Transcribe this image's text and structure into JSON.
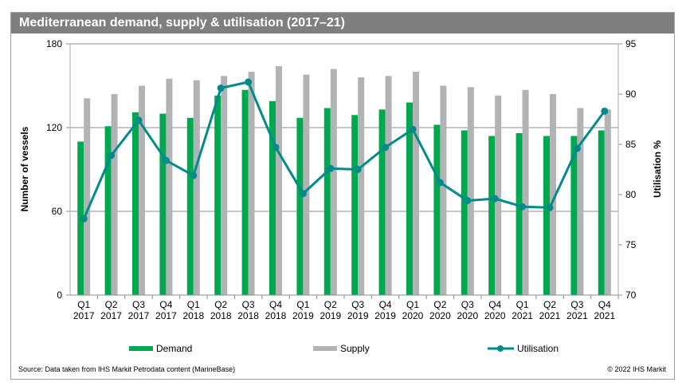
{
  "chart_data": {
    "type": "bar+line",
    "title": "Mediterranean demand, supply & utilisation (2017–21)",
    "ylabel": "Number of vessels",
    "y2label": "Utilisation %",
    "ylim": [
      0,
      180
    ],
    "yticks": [
      0,
      60,
      120,
      180
    ],
    "y2lim": [
      70,
      95
    ],
    "y2ticks": [
      70,
      75,
      80,
      85,
      90,
      95
    ],
    "grid": "horizontal",
    "legend": "bottom",
    "categories": [
      [
        "Q1",
        "2017"
      ],
      [
        "Q2",
        "2017"
      ],
      [
        "Q3",
        "2017"
      ],
      [
        "Q4",
        "2017"
      ],
      [
        "Q1",
        "2018"
      ],
      [
        "Q2",
        "2018"
      ],
      [
        "Q3",
        "2018"
      ],
      [
        "Q4",
        "2018"
      ],
      [
        "Q1",
        "2019"
      ],
      [
        "Q2",
        "2019"
      ],
      [
        "Q3",
        "2019"
      ],
      [
        "Q4",
        "2019"
      ],
      [
        "Q1",
        "2020"
      ],
      [
        "Q2",
        "2020"
      ],
      [
        "Q3",
        "2020"
      ],
      [
        "Q4",
        "2020"
      ],
      [
        "Q1",
        "2021"
      ],
      [
        "Q2",
        "2021"
      ],
      [
        "Q3",
        "2021"
      ],
      [
        "Q4",
        "2021"
      ]
    ],
    "series": [
      {
        "name": "Demand",
        "type": "bar",
        "axis": "left",
        "color": "#00a84f",
        "values": [
          110,
          121,
          131,
          130,
          127,
          143,
          147,
          139,
          127,
          134,
          129,
          133,
          138,
          122,
          118,
          114,
          116,
          114,
          114,
          118
        ]
      },
      {
        "name": "Supply",
        "type": "bar",
        "axis": "left",
        "color": "#b2b3b6",
        "values": [
          141,
          144,
          150,
          155,
          154,
          157,
          160,
          164,
          158,
          162,
          156,
          157,
          160,
          150,
          149,
          143,
          147,
          144,
          134,
          133
        ]
      },
      {
        "name": "Utilisation",
        "type": "line",
        "axis": "right",
        "color": "#008b8b",
        "values": [
          77.6,
          83.9,
          87.4,
          83.4,
          81.9,
          90.6,
          91.2,
          84.7,
          80.1,
          82.6,
          82.5,
          84.7,
          86.5,
          81.2,
          79.4,
          79.6,
          78.8,
          78.7,
          84.6,
          88.3
        ]
      }
    ]
  },
  "footer": {
    "source": "Source: Data taken from IHS Markit Petrodata content (MarineBase)",
    "copyright": "© 2022 IHS Markit"
  }
}
